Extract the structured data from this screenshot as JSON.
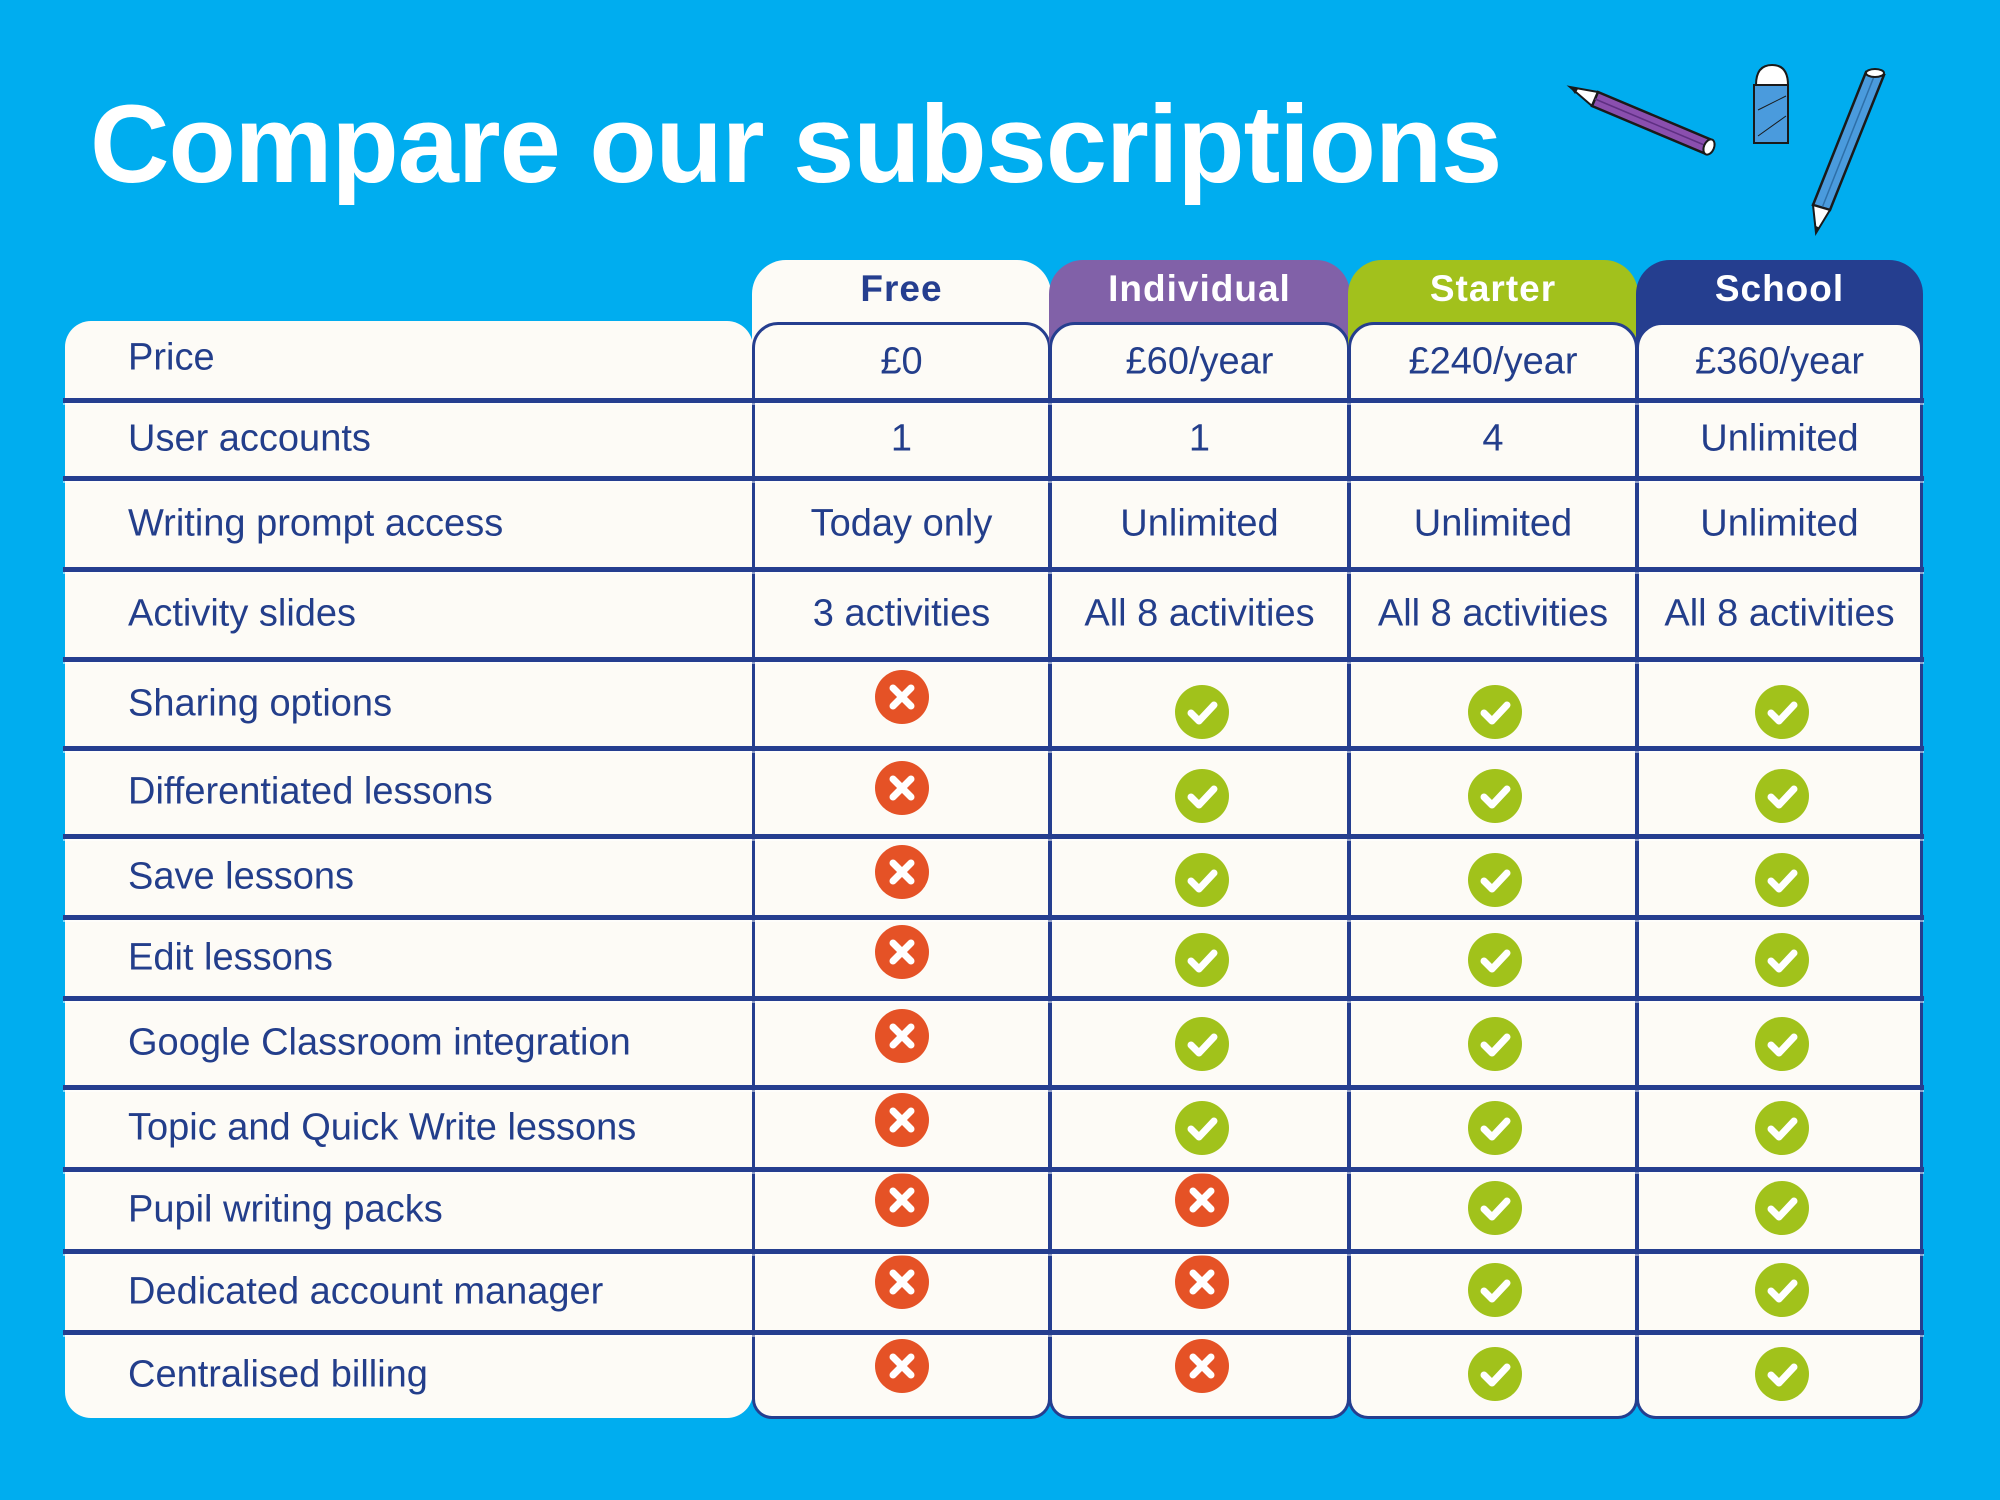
{
  "page": {
    "title": "Compare our subscriptions",
    "colors": {
      "background": "#00ADEF",
      "text": "#233E8B",
      "navy": "#253E8F",
      "cream": "#FDFBF6",
      "cross": "#E55226",
      "check": "#A1C21B"
    }
  },
  "plans": [
    {
      "name": "Free",
      "tab_color": "#FDFBF6",
      "label_color": "#253E8F"
    },
    {
      "name": "Individual",
      "tab_color": "#8161A8",
      "label_color": "#FFFFFF"
    },
    {
      "name": "Starter",
      "tab_color": "#A2C11C",
      "label_color": "#FFFFFF"
    },
    {
      "name": "School",
      "tab_color": "#253E8F",
      "label_color": "#FFFFFF"
    }
  ],
  "features": [
    {
      "label": "Price",
      "values": [
        "£0",
        "£60/year",
        "£240/year",
        "£360/year"
      ]
    },
    {
      "label": "User accounts",
      "values": [
        "1",
        "1",
        "4",
        "Unlimited"
      ]
    },
    {
      "label": "Writing prompt access",
      "values": [
        "Today only",
        "Unlimited",
        "Unlimited",
        "Unlimited"
      ]
    },
    {
      "label": "Activity slides",
      "values": [
        "3 activities",
        "All 8 activities",
        "All 8 activities",
        "All 8 activities"
      ]
    },
    {
      "label": "Sharing options",
      "values": [
        "cross-icon",
        "check-icon",
        "check-icon",
        "check-icon"
      ]
    },
    {
      "label": "Differentiated lessons",
      "values": [
        "cross-icon",
        "check-icon",
        "check-icon",
        "check-icon"
      ]
    },
    {
      "label": "Save lessons",
      "values": [
        "cross-icon",
        "check-icon",
        "check-icon",
        "check-icon"
      ]
    },
    {
      "label": "Edit lessons",
      "values": [
        "cross-icon",
        "check-icon",
        "check-icon",
        "check-icon"
      ]
    },
    {
      "label": "Google Classroom integration",
      "values": [
        "cross-icon",
        "check-icon",
        "check-icon",
        "check-icon"
      ]
    },
    {
      "label": "Topic and Quick Write lessons",
      "values": [
        "cross-icon",
        "check-icon",
        "check-icon",
        "check-icon"
      ]
    },
    {
      "label": "Pupil writing packs",
      "values": [
        "cross-icon",
        "cross-icon",
        "check-icon",
        "check-icon"
      ]
    },
    {
      "label": "Dedicated account manager",
      "values": [
        "cross-icon",
        "cross-icon",
        "check-icon",
        "check-icon"
      ]
    },
    {
      "label": "Centralised billing",
      "values": [
        "cross-icon",
        "cross-icon",
        "check-icon",
        "check-icon"
      ]
    }
  ],
  "decorations": [
    "purple-pencil-icon",
    "eraser-icon",
    "blue-pencil-icon"
  ]
}
